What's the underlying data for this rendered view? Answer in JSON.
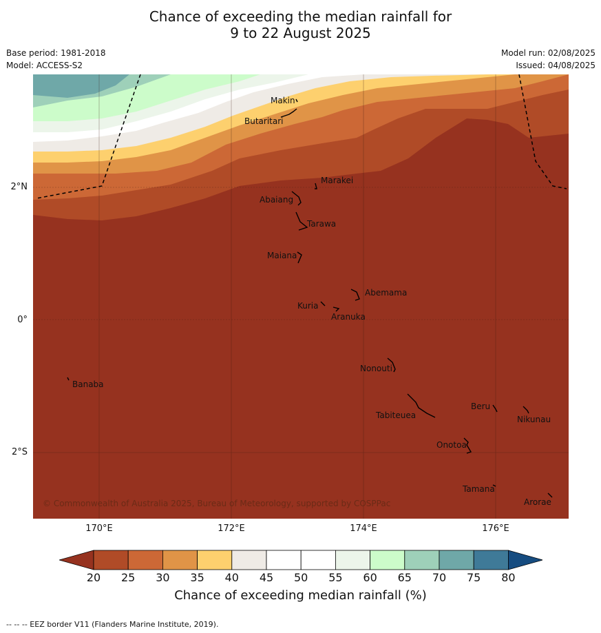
{
  "header": {
    "title_line1": "Chance of exceeding the median rainfall for",
    "title_line2": "9 to 22 August 2025",
    "base_period": "Base period: 1981-2018",
    "model": "Model: ACCESS-S2",
    "model_run": "Model run: 02/08/2025",
    "issued": "Issued: 04/08/2025"
  },
  "map": {
    "lat_labels": [
      "2°N",
      "0°",
      "2°S"
    ],
    "lon_labels": [
      "170°E",
      "172°E",
      "174°E",
      "176°E"
    ],
    "islands": [
      "Makin",
      "Butaritari",
      "Marakei",
      "Abaiang",
      "Tarawa",
      "Maiana",
      "Abemama",
      "Kuria",
      "Aranuka",
      "Nonouti",
      "Banaba",
      "Beru",
      "Nikunau",
      "Tabiteuea",
      "Onotoa",
      "Tamana",
      "Arorae"
    ],
    "copyright": "© Commonwealth of Australia 2025, Bureau of Meteorology, supported by COSPPac",
    "background_color": "#96321f"
  },
  "colorbar": {
    "ticks": [
      "20",
      "25",
      "30",
      "35",
      "40",
      "45",
      "50",
      "55",
      "60",
      "65",
      "70",
      "75",
      "80"
    ],
    "colors": [
      "#96321f",
      "#b04b27",
      "#cc6836",
      "#e09447",
      "#fdd06e",
      "#efebe6",
      "#ffffff",
      "#ffffff",
      "#ecf5ea",
      "#ccfcca",
      "#9ed0b9",
      "#6fa8a8",
      "#3f7a98",
      "#164c80"
    ],
    "label": "Chance of exceeding median rainfall (%)"
  },
  "footer": {
    "note": "--  --  -- EEZ border V11 (Flanders Marine Institute, 2019)."
  }
}
